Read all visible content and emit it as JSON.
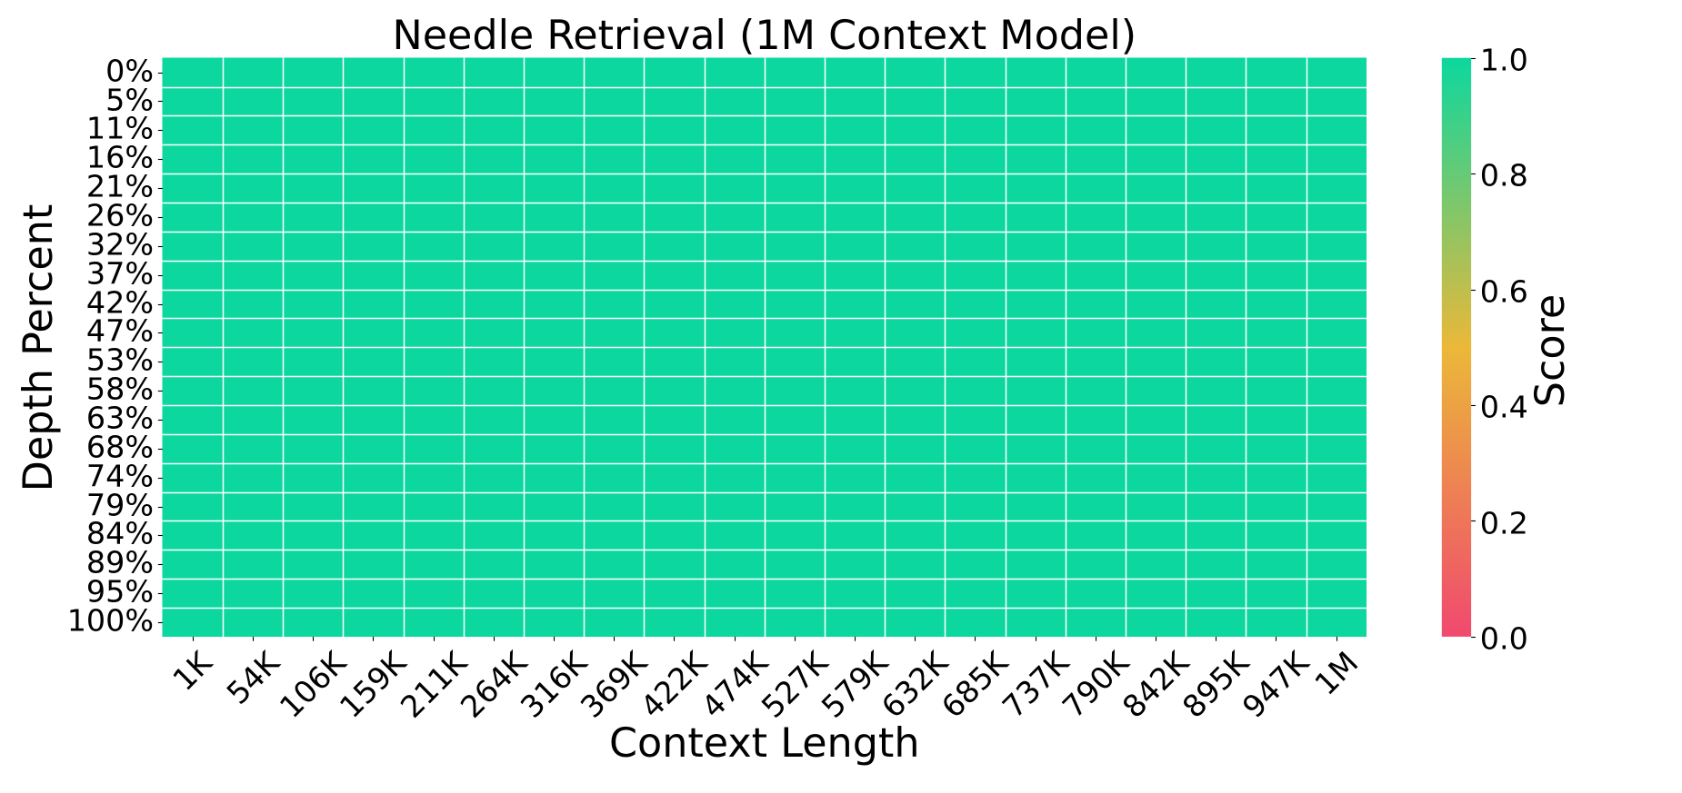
{
  "chart_data": {
    "type": "heatmap",
    "title": "Needle Retrieval (1M Context Model)",
    "xlabel": "Context Length",
    "ylabel": "Depth Percent",
    "x_ticklabels": [
      "1K",
      "54K",
      "106K",
      "159K",
      "211K",
      "264K",
      "316K",
      "369K",
      "422K",
      "474K",
      "527K",
      "579K",
      "632K",
      "685K",
      "737K",
      "790K",
      "842K",
      "895K",
      "947K",
      "1M"
    ],
    "y_ticklabels": [
      "0%",
      "5%",
      "11%",
      "16%",
      "21%",
      "26%",
      "32%",
      "37%",
      "42%",
      "47%",
      "53%",
      "58%",
      "63%",
      "68%",
      "74%",
      "79%",
      "84%",
      "89%",
      "95%",
      "100%"
    ],
    "values": [
      [
        1,
        1,
        1,
        1,
        1,
        1,
        1,
        1,
        1,
        1,
        1,
        1,
        1,
        1,
        1,
        1,
        1,
        1,
        1,
        1
      ],
      [
        1,
        1,
        1,
        1,
        1,
        1,
        1,
        1,
        1,
        1,
        1,
        1,
        1,
        1,
        1,
        1,
        1,
        1,
        1,
        1
      ],
      [
        1,
        1,
        1,
        1,
        1,
        1,
        1,
        1,
        1,
        1,
        1,
        1,
        1,
        1,
        1,
        1,
        1,
        1,
        1,
        1
      ],
      [
        1,
        1,
        1,
        1,
        1,
        1,
        1,
        1,
        1,
        1,
        1,
        1,
        1,
        1,
        1,
        1,
        1,
        1,
        1,
        1
      ],
      [
        1,
        1,
        1,
        1,
        1,
        1,
        1,
        1,
        1,
        1,
        1,
        1,
        1,
        1,
        1,
        1,
        1,
        1,
        1,
        1
      ],
      [
        1,
        1,
        1,
        1,
        1,
        1,
        1,
        1,
        1,
        1,
        1,
        1,
        1,
        1,
        1,
        1,
        1,
        1,
        1,
        1
      ],
      [
        1,
        1,
        1,
        1,
        1,
        1,
        1,
        1,
        1,
        1,
        1,
        1,
        1,
        1,
        1,
        1,
        1,
        1,
        1,
        1
      ],
      [
        1,
        1,
        1,
        1,
        1,
        1,
        1,
        1,
        1,
        1,
        1,
        1,
        1,
        1,
        1,
        1,
        1,
        1,
        1,
        1
      ],
      [
        1,
        1,
        1,
        1,
        1,
        1,
        1,
        1,
        1,
        1,
        1,
        1,
        1,
        1,
        1,
        1,
        1,
        1,
        1,
        1
      ],
      [
        1,
        1,
        1,
        1,
        1,
        1,
        1,
        1,
        1,
        1,
        1,
        1,
        1,
        1,
        1,
        1,
        1,
        1,
        1,
        1
      ],
      [
        1,
        1,
        1,
        1,
        1,
        1,
        1,
        1,
        1,
        1,
        1,
        1,
        1,
        1,
        1,
        1,
        1,
        1,
        1,
        1
      ],
      [
        1,
        1,
        1,
        1,
        1,
        1,
        1,
        1,
        1,
        1,
        1,
        1,
        1,
        1,
        1,
        1,
        1,
        1,
        1,
        1
      ],
      [
        1,
        1,
        1,
        1,
        1,
        1,
        1,
        1,
        1,
        1,
        1,
        1,
        1,
        1,
        1,
        1,
        1,
        1,
        1,
        1
      ],
      [
        1,
        1,
        1,
        1,
        1,
        1,
        1,
        1,
        1,
        1,
        1,
        1,
        1,
        1,
        1,
        1,
        1,
        1,
        1,
        1
      ],
      [
        1,
        1,
        1,
        1,
        1,
        1,
        1,
        1,
        1,
        1,
        1,
        1,
        1,
        1,
        1,
        1,
        1,
        1,
        1,
        1
      ],
      [
        1,
        1,
        1,
        1,
        1,
        1,
        1,
        1,
        1,
        1,
        1,
        1,
        1,
        1,
        1,
        1,
        1,
        1,
        1,
        1
      ],
      [
        1,
        1,
        1,
        1,
        1,
        1,
        1,
        1,
        1,
        1,
        1,
        1,
        1,
        1,
        1,
        1,
        1,
        1,
        1,
        1
      ],
      [
        1,
        1,
        1,
        1,
        1,
        1,
        1,
        1,
        1,
        1,
        1,
        1,
        1,
        1,
        1,
        1,
        1,
        1,
        1,
        1
      ],
      [
        1,
        1,
        1,
        1,
        1,
        1,
        1,
        1,
        1,
        1,
        1,
        1,
        1,
        1,
        1,
        1,
        1,
        1,
        1,
        1
      ],
      [
        1,
        1,
        1,
        1,
        1,
        1,
        1,
        1,
        1,
        1,
        1,
        1,
        1,
        1,
        1,
        1,
        1,
        1,
        1,
        1
      ]
    ],
    "vmin": 0,
    "vmax": 1,
    "grid": true,
    "grid_color": "#ffffff",
    "background": "#ffffff",
    "text_color": "#000000",
    "colormap": {
      "positions": [
        0,
        0.5,
        1
      ],
      "colors": [
        "#F0496E",
        "#EBB839",
        "#0CD79F"
      ]
    },
    "colorbar": {
      "label": "Score",
      "tick_labels": [
        "0.0",
        "0.2",
        "0.4",
        "0.6",
        "0.8",
        "1.0"
      ],
      "tick_values": [
        0,
        0.2,
        0.4,
        0.6,
        0.8,
        1.0
      ],
      "position": "right"
    }
  }
}
